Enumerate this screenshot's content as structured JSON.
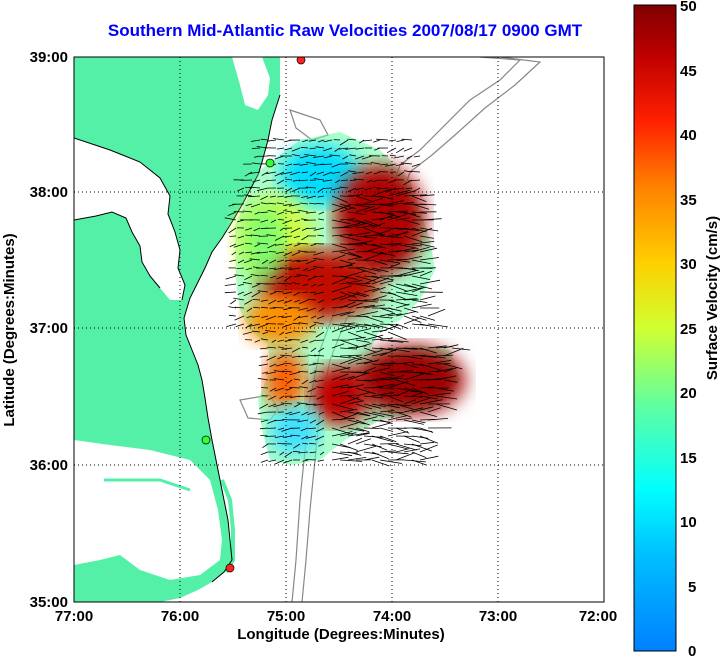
{
  "title": "Southern Mid-Atlantic Raw Velocities 2007/08/17 0900 GMT",
  "map": {
    "xlabel": "Longitude (Degrees:Minutes)",
    "ylabel": "Latitude (Degrees:Minutes)",
    "x_ticks": [
      "77:00",
      "76:00",
      "75:00",
      "74:00",
      "73:00",
      "72:00"
    ],
    "y_ticks": [
      "39:00",
      "38:00",
      "37:00",
      "36:00",
      "35:00"
    ],
    "land_color": "#55f0a8",
    "water_color": "#ffffff",
    "grid": true,
    "sites": [
      {
        "name": "site-1",
        "color": "#ff2020"
      },
      {
        "name": "site-2",
        "color": "#30ff30"
      },
      {
        "name": "site-3",
        "color": "#30ff30"
      },
      {
        "name": "site-4",
        "color": "#ff2020"
      }
    ]
  },
  "colorbar": {
    "label": "Surface Velocity (cm/s)",
    "ticks": [
      "50",
      "45",
      "40",
      "35",
      "30",
      "25",
      "20",
      "15",
      "10",
      "5",
      "0"
    ],
    "min": 0,
    "max": 50,
    "colormap": "jet"
  }
}
